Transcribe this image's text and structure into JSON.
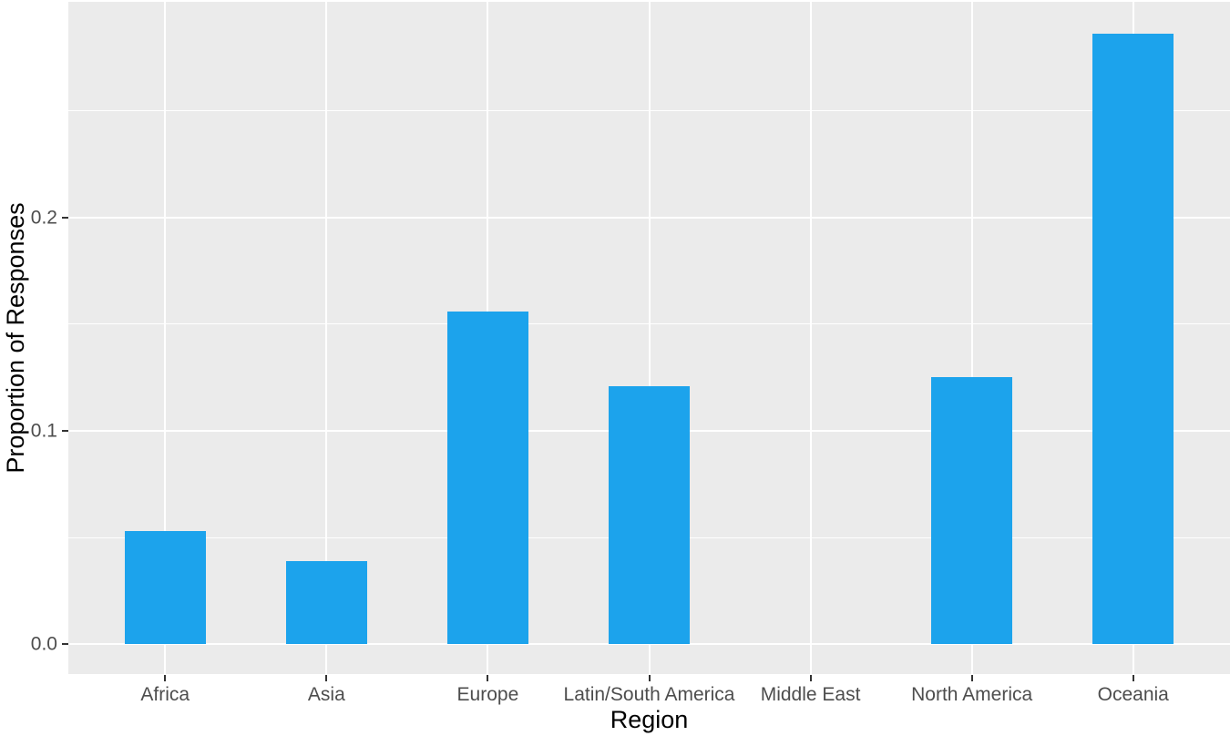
{
  "chart_data": {
    "type": "bar",
    "title": "",
    "xlabel": "Region",
    "ylabel": "Proportion of Responses",
    "categories": [
      "Africa",
      "Asia",
      "Europe",
      "Latin/South America",
      "Middle East",
      "North America",
      "Oceania"
    ],
    "values": [
      0.053,
      0.039,
      0.156,
      0.121,
      0,
      0.125,
      0.286
    ],
    "ylim": [
      -0.014,
      0.301
    ],
    "yticks": [
      0,
      0.1,
      0.2
    ],
    "ytick_labels": [
      "0.0",
      "0.1",
      "0.2"
    ],
    "yticks_minor": [
      0.05,
      0.15,
      0.25
    ],
    "bar_width_fraction": 0.5,
    "x_expand": 0.6,
    "grid": true,
    "legend": "none",
    "colors": {
      "bar_fill": "#1CA3EC",
      "panel_bg": "#EBEBEB",
      "gridline": "#FFFFFF",
      "tick_text": "#4D4D4D",
      "axis_title": "#000000",
      "tick_mark": "#333333",
      "background": "#FFFFFF"
    }
  }
}
